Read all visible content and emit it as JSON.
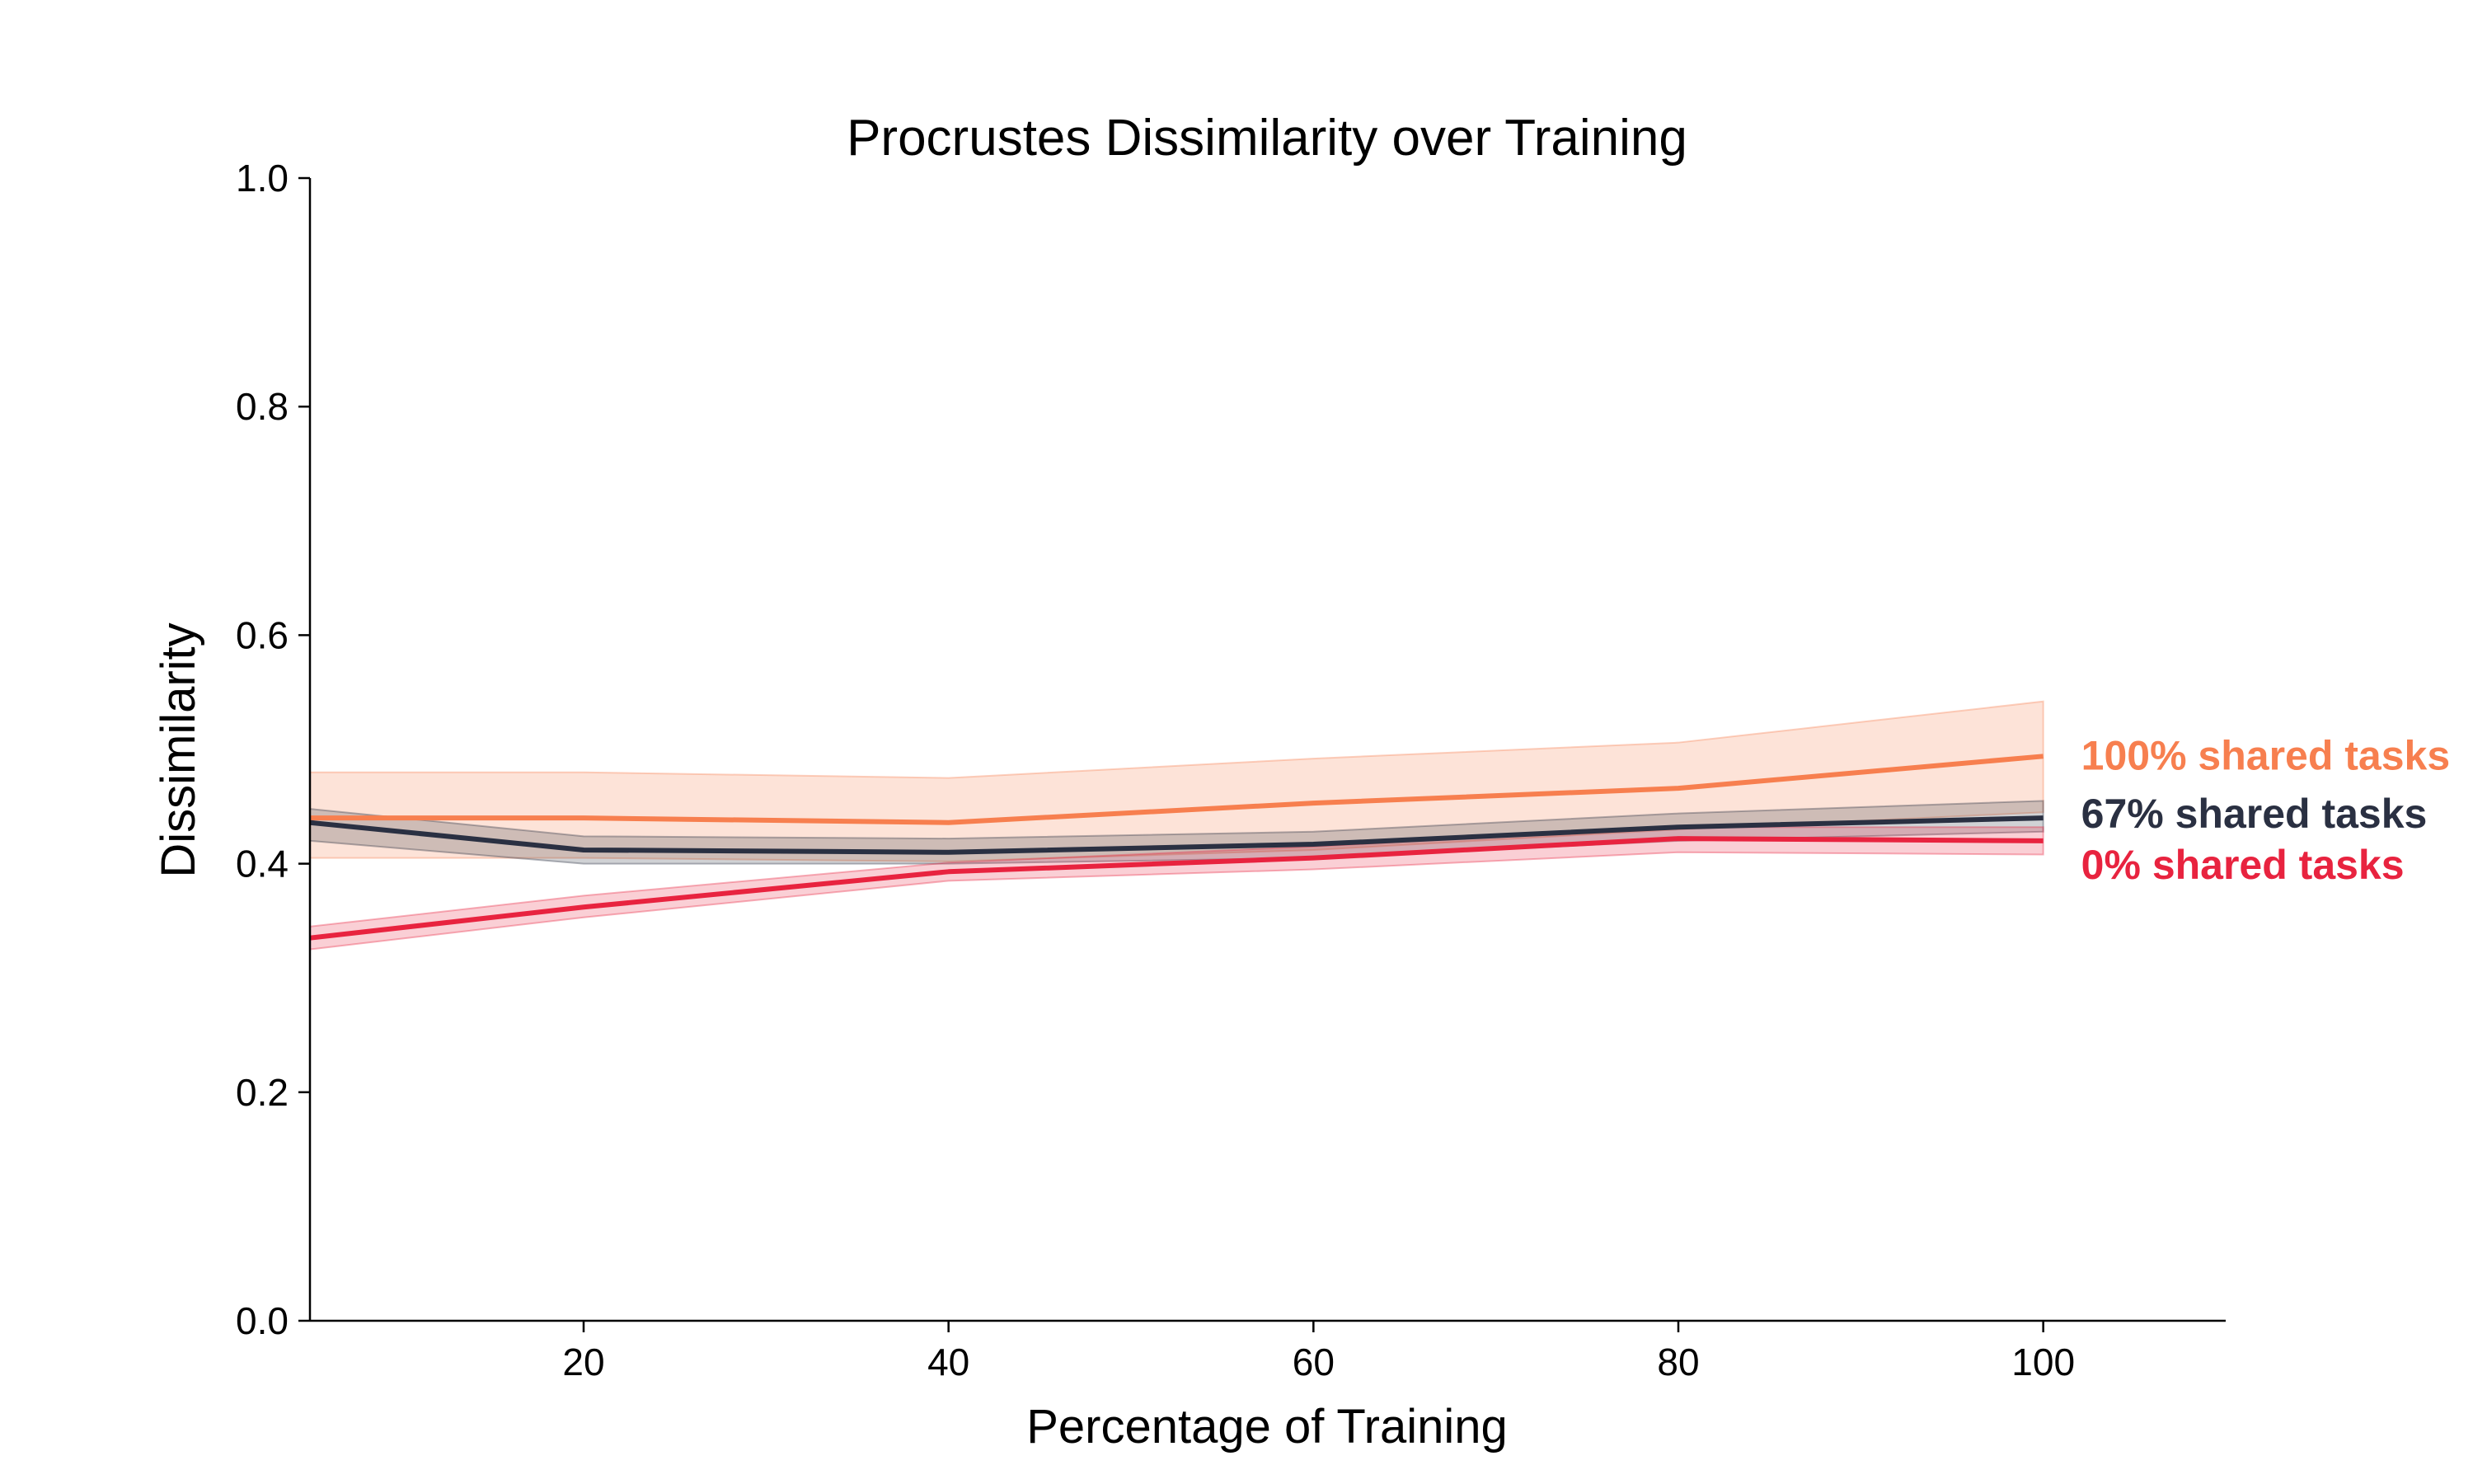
{
  "chart_data": {
    "type": "line",
    "title": "Procrustes Dissimilarity over Training",
    "xlabel": "Percentage of Training",
    "ylabel": "Dissimilarity",
    "xlim": [
      5,
      110
    ],
    "ylim": [
      0.0,
      1.0
    ],
    "xticks": [
      "20",
      "40",
      "60",
      "80",
      "100"
    ],
    "yticks": [
      "0.0",
      "0.2",
      "0.4",
      "0.6",
      "0.8",
      "1.0"
    ],
    "grid": false,
    "series": [
      {
        "name": "100% shared tasks",
        "color": "#f77f4f",
        "x": [
          5,
          20,
          40,
          60,
          80,
          100
        ],
        "y": [
          0.44,
          0.44,
          0.436,
          0.453,
          0.466,
          0.494
        ],
        "lower": [
          0.405,
          0.405,
          0.402,
          0.412,
          0.43,
          0.445
        ],
        "upper": [
          0.48,
          0.48,
          0.475,
          0.492,
          0.506,
          0.542
        ]
      },
      {
        "name": "67% shared tasks",
        "color": "#2a3042",
        "x": [
          5,
          20,
          40,
          60,
          80,
          100
        ],
        "y": [
          0.436,
          0.412,
          0.41,
          0.417,
          0.432,
          0.44
        ],
        "lower": [
          0.42,
          0.4,
          0.4,
          0.405,
          0.42,
          0.428
        ],
        "upper": [
          0.448,
          0.424,
          0.422,
          0.428,
          0.444,
          0.455
        ]
      },
      {
        "name": "0% shared tasks",
        "color": "#e8233f",
        "x": [
          5,
          20,
          40,
          60,
          80,
          100
        ],
        "y": [
          0.335,
          0.362,
          0.393,
          0.405,
          0.422,
          0.42
        ],
        "lower": [
          0.325,
          0.353,
          0.385,
          0.395,
          0.41,
          0.408
        ],
        "upper": [
          0.345,
          0.372,
          0.401,
          0.415,
          0.432,
          0.432
        ]
      }
    ]
  }
}
